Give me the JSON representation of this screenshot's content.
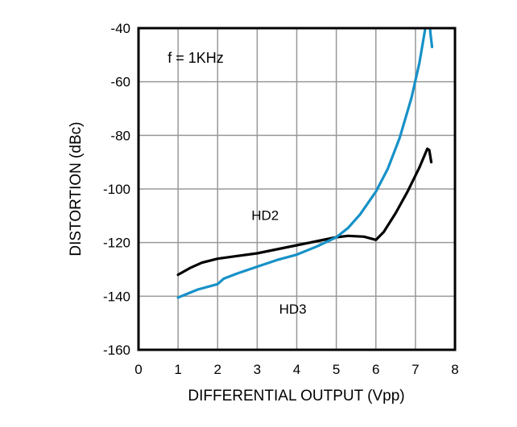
{
  "chart_data": {
    "type": "line",
    "annotation": "f = 1KHz",
    "xlabel": "DIFFERENTIAL OUTPUT (Vpp)",
    "ylabel": "DISTORTION (dBc)",
    "xlim": [
      0,
      8
    ],
    "ylim": [
      -160,
      -40
    ],
    "xticks": [
      0,
      1,
      2,
      3,
      4,
      5,
      6,
      7,
      8
    ],
    "yticks": [
      -160,
      -140,
      -120,
      -100,
      -80,
      -60,
      -40
    ],
    "grid": true,
    "grid_color": "#999999",
    "border_color": "#000000",
    "series": [
      {
        "name": "HD2",
        "color": "#000000",
        "label_pos": {
          "x": 3.2,
          "y": -111.5
        },
        "points": [
          [
            1.0,
            -132
          ],
          [
            1.3,
            -129.5
          ],
          [
            1.6,
            -127.5
          ],
          [
            2.0,
            -126
          ],
          [
            2.5,
            -125
          ],
          [
            3.0,
            -124
          ],
          [
            3.5,
            -122.5
          ],
          [
            4.0,
            -121
          ],
          [
            4.5,
            -119.5
          ],
          [
            5.0,
            -118
          ],
          [
            5.3,
            -117.5
          ],
          [
            5.7,
            -117.8
          ],
          [
            6.0,
            -119
          ],
          [
            6.2,
            -116
          ],
          [
            6.5,
            -109
          ],
          [
            6.8,
            -101
          ],
          [
            7.1,
            -92
          ],
          [
            7.3,
            -85
          ],
          [
            7.35,
            -85.5
          ],
          [
            7.4,
            -90
          ]
        ]
      },
      {
        "name": "HD3",
        "color": "#1691c8",
        "label_pos": {
          "x": 3.9,
          "y": -146.5
        },
        "points": [
          [
            1.0,
            -140.5
          ],
          [
            1.5,
            -137.5
          ],
          [
            2.0,
            -135.5
          ],
          [
            2.15,
            -133.5
          ],
          [
            2.5,
            -131.5
          ],
          [
            3.0,
            -129
          ],
          [
            3.5,
            -126.5
          ],
          [
            4.0,
            -124.5
          ],
          [
            4.5,
            -121.5
          ],
          [
            5.0,
            -118
          ],
          [
            5.3,
            -114.5
          ],
          [
            5.6,
            -109.5
          ],
          [
            6.0,
            -101
          ],
          [
            6.3,
            -92.5
          ],
          [
            6.6,
            -81
          ],
          [
            6.9,
            -66
          ],
          [
            7.1,
            -53
          ],
          [
            7.25,
            -40
          ],
          [
            7.3,
            -33
          ],
          [
            7.33,
            -33
          ],
          [
            7.38,
            -42
          ],
          [
            7.42,
            -47
          ]
        ]
      }
    ]
  }
}
